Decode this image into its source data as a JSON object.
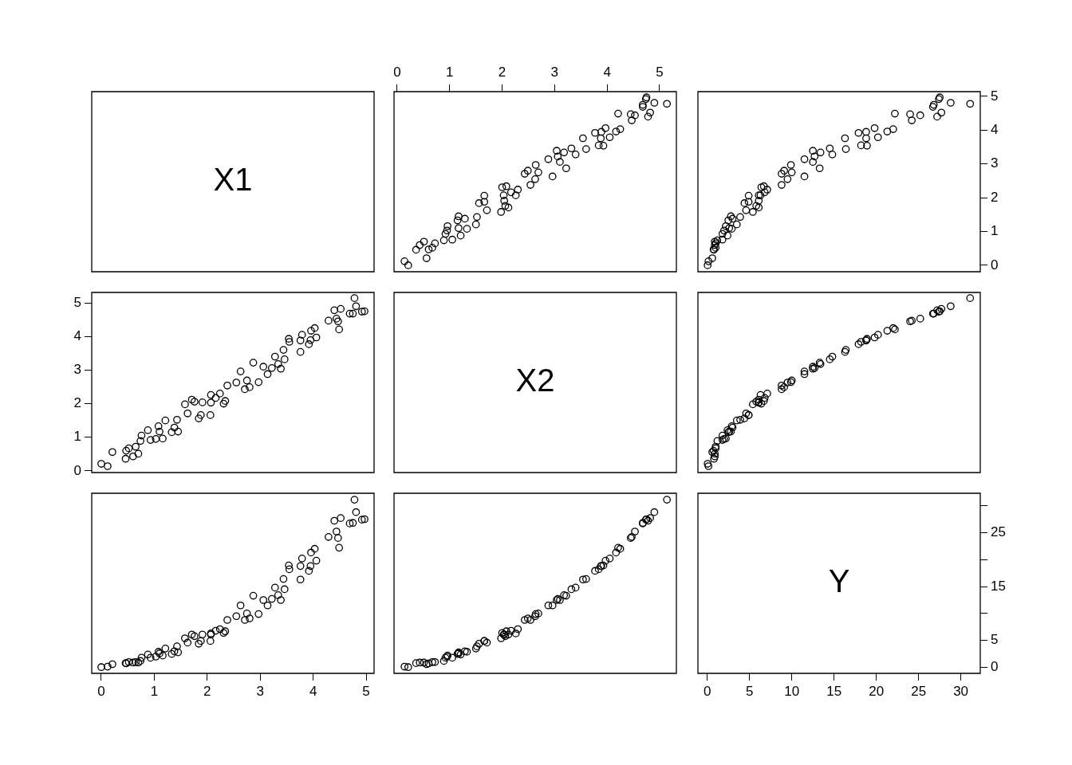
{
  "chart_data": [
    {
      "type": "other",
      "title": "X1"
    },
    {
      "type": "scatter",
      "marker": "circle",
      "color": "#000000",
      "xlim": [
        -0.06,
        5.32
      ],
      "ylim": [
        -0.19,
        5.14
      ],
      "xticks": [
        0,
        1,
        2,
        3,
        4,
        5
      ],
      "tick_labels": "x",
      "x": [
        0.21,
        0.14,
        0.56,
        0.36,
        0.6,
        0.67,
        0.43,
        0.72,
        0.51,
        0.89,
        1.05,
        1.21,
        0.92,
        0.95,
        1.33,
        1.17,
        0.96,
        1.5,
        1.15,
        1.29,
        1.52,
        1.17,
        1.98,
        1.71,
        2.12,
        2.06,
        1.56,
        1.66,
        2.04,
        1.66,
        2.26,
        2.03,
        2.17,
        2.3,
        2.0,
        2.08,
        2.54,
        2.63,
        2.96,
        2.43,
        2.69,
        2.49,
        3.22,
        2.64,
        3.1,
        2.88,
        3.06,
        3.4,
        3.18,
        3.04,
        3.6,
        3.32,
        3.93,
        3.84,
        3.54,
        3.88,
        4.05,
        3.77,
        3.89,
        4.17,
        4.25,
        3.97,
        4.47,
        4.78,
        4.53,
        4.45,
        4.21,
        4.82,
        4.68,
        4.68,
        5.14,
        4.9,
        4.74,
        4.75
      ],
      "values": [
        0.0,
        0.12,
        0.21,
        0.46,
        0.47,
        0.52,
        0.6,
        0.65,
        0.7,
        0.74,
        0.76,
        0.88,
        0.93,
        1.03,
        1.08,
        1.1,
        1.16,
        1.21,
        1.33,
        1.38,
        1.43,
        1.45,
        1.58,
        1.63,
        1.71,
        1.76,
        1.84,
        1.88,
        1.91,
        2.06,
        2.07,
        2.07,
        2.16,
        2.24,
        2.31,
        2.34,
        2.38,
        2.55,
        2.63,
        2.71,
        2.75,
        2.8,
        2.87,
        2.97,
        3.06,
        3.14,
        3.22,
        3.28,
        3.34,
        3.39,
        3.44,
        3.46,
        3.54,
        3.55,
        3.76,
        3.76,
        3.79,
        3.92,
        3.95,
        3.96,
        4.03,
        4.06,
        4.29,
        4.4,
        4.44,
        4.47,
        4.49,
        4.52,
        4.69,
        4.75,
        4.78,
        4.81,
        4.92,
        4.97
      ]
    },
    {
      "type": "scatter",
      "marker": "circle",
      "color": "#000000",
      "xlim": [
        -1.1,
        32.3
      ],
      "ylim": [
        -0.19,
        5.14
      ],
      "yticks": [
        0,
        1,
        2,
        3,
        4,
        5
      ],
      "tick_labels": "y",
      "x": [
        0.05,
        0.15,
        0.6,
        0.8,
        0.75,
        1.0,
        0.9,
        1.0,
        0.9,
        1.2,
        1.8,
        2.4,
        1.8,
        2.0,
        2.9,
        2.6,
        2.2,
        3.5,
        2.5,
        3.0,
        3.9,
        2.8,
        5.4,
        4.6,
        6.1,
        5.8,
        4.4,
        4.9,
        6.1,
        4.9,
        6.3,
        6.1,
        6.8,
        7.1,
        6.4,
        6.7,
        8.8,
        9.5,
        11.5,
        8.8,
        10.0,
        9.1,
        13.3,
        9.9,
        12.5,
        11.5,
        12.7,
        14.8,
        13.4,
        12.5,
        16.4,
        14.5,
        18.9,
        18.2,
        16.3,
        18.8,
        20.2,
        17.9,
        18.8,
        21.3,
        22.0,
        19.8,
        24.2,
        27.2,
        25.2,
        24.0,
        22.2,
        27.7,
        26.7,
        26.8,
        31.1,
        28.8,
        27.4,
        27.5
      ],
      "values": [
        0.0,
        0.12,
        0.21,
        0.46,
        0.47,
        0.52,
        0.6,
        0.65,
        0.7,
        0.74,
        0.76,
        0.88,
        0.93,
        1.03,
        1.08,
        1.1,
        1.16,
        1.21,
        1.33,
        1.38,
        1.43,
        1.45,
        1.58,
        1.63,
        1.71,
        1.76,
        1.84,
        1.88,
        1.91,
        2.06,
        2.07,
        2.07,
        2.16,
        2.24,
        2.31,
        2.34,
        2.38,
        2.55,
        2.63,
        2.71,
        2.75,
        2.8,
        2.87,
        2.97,
        3.06,
        3.14,
        3.22,
        3.28,
        3.34,
        3.39,
        3.44,
        3.46,
        3.54,
        3.55,
        3.76,
        3.76,
        3.79,
        3.92,
        3.95,
        3.96,
        4.03,
        4.06,
        4.29,
        4.4,
        4.44,
        4.47,
        4.49,
        4.52,
        4.69,
        4.75,
        4.78,
        4.81,
        4.92,
        4.97
      ]
    },
    {
      "type": "scatter",
      "marker": "circle",
      "color": "#000000",
      "xlim": [
        -0.18,
        5.15
      ],
      "ylim": [
        -0.05,
        5.31
      ],
      "yticks": [
        0,
        1,
        2,
        3,
        4,
        5
      ],
      "tick_labels": "y",
      "x": [
        0.0,
        0.12,
        0.21,
        0.46,
        0.47,
        0.52,
        0.6,
        0.65,
        0.7,
        0.74,
        0.76,
        0.88,
        0.93,
        1.03,
        1.08,
        1.1,
        1.16,
        1.21,
        1.33,
        1.38,
        1.43,
        1.45,
        1.58,
        1.63,
        1.71,
        1.76,
        1.84,
        1.88,
        1.91,
        2.06,
        2.07,
        2.07,
        2.16,
        2.24,
        2.31,
        2.34,
        2.38,
        2.55,
        2.63,
        2.71,
        2.75,
        2.8,
        2.87,
        2.97,
        3.06,
        3.14,
        3.22,
        3.28,
        3.34,
        3.39,
        3.44,
        3.46,
        3.54,
        3.55,
        3.76,
        3.76,
        3.79,
        3.92,
        3.95,
        3.96,
        4.03,
        4.06,
        4.29,
        4.4,
        4.44,
        4.47,
        4.49,
        4.52,
        4.69,
        4.75,
        4.78,
        4.81,
        4.92,
        4.97
      ],
      "values": [
        0.21,
        0.14,
        0.56,
        0.36,
        0.6,
        0.67,
        0.43,
        0.72,
        0.51,
        0.89,
        1.05,
        1.21,
        0.92,
        0.95,
        1.33,
        1.17,
        0.96,
        1.5,
        1.15,
        1.29,
        1.52,
        1.17,
        1.98,
        1.71,
        2.12,
        2.06,
        1.56,
        1.66,
        2.04,
        1.66,
        2.26,
        2.03,
        2.17,
        2.3,
        2.0,
        2.08,
        2.54,
        2.63,
        2.96,
        2.43,
        2.69,
        2.49,
        3.22,
        2.64,
        3.1,
        2.88,
        3.06,
        3.4,
        3.18,
        3.04,
        3.6,
        3.32,
        3.93,
        3.84,
        3.54,
        3.88,
        4.05,
        3.77,
        3.89,
        4.17,
        4.25,
        3.97,
        4.47,
        4.78,
        4.53,
        4.45,
        4.21,
        4.82,
        4.68,
        4.68,
        5.14,
        4.9,
        4.74,
        4.75
      ]
    },
    {
      "type": "other",
      "title": "X2"
    },
    {
      "type": "scatter",
      "marker": "circle",
      "color": "#000000",
      "xlim": [
        -1.1,
        32.3
      ],
      "ylim": [
        -0.05,
        5.31
      ],
      "tick_labels": false,
      "x": [
        0.05,
        0.15,
        0.6,
        0.8,
        0.75,
        1.0,
        0.9,
        1.0,
        0.9,
        1.2,
        1.8,
        2.4,
        1.8,
        2.0,
        2.9,
        2.6,
        2.2,
        3.5,
        2.5,
        3.0,
        3.9,
        2.8,
        5.4,
        4.6,
        6.1,
        5.8,
        4.4,
        4.9,
        6.1,
        4.9,
        6.3,
        6.1,
        6.8,
        7.1,
        6.4,
        6.7,
        8.8,
        9.5,
        11.5,
        8.8,
        10.0,
        9.1,
        13.3,
        9.9,
        12.5,
        11.5,
        12.7,
        14.8,
        13.4,
        12.5,
        16.4,
        14.5,
        18.9,
        18.2,
        16.3,
        18.8,
        20.2,
        17.9,
        18.8,
        21.3,
        22.0,
        19.8,
        24.2,
        27.2,
        25.2,
        24.0,
        22.2,
        27.7,
        26.7,
        26.8,
        31.1,
        28.8,
        27.4,
        27.5
      ],
      "values": [
        0.21,
        0.14,
        0.56,
        0.36,
        0.6,
        0.67,
        0.43,
        0.72,
        0.51,
        0.89,
        1.05,
        1.21,
        0.92,
        0.95,
        1.33,
        1.17,
        0.96,
        1.5,
        1.15,
        1.29,
        1.52,
        1.17,
        1.98,
        1.71,
        2.12,
        2.06,
        1.56,
        1.66,
        2.04,
        1.66,
        2.26,
        2.03,
        2.17,
        2.3,
        2.0,
        2.08,
        2.54,
        2.63,
        2.96,
        2.43,
        2.69,
        2.49,
        3.22,
        2.64,
        3.1,
        2.88,
        3.06,
        3.4,
        3.18,
        3.04,
        3.6,
        3.32,
        3.93,
        3.84,
        3.54,
        3.88,
        4.05,
        3.77,
        3.89,
        4.17,
        4.25,
        3.97,
        4.47,
        4.78,
        4.53,
        4.45,
        4.21,
        4.82,
        4.68,
        4.68,
        5.14,
        4.9,
        4.74,
        4.75
      ]
    },
    {
      "type": "scatter",
      "marker": "circle",
      "color": "#000000",
      "xlim": [
        -0.18,
        5.15
      ],
      "ylim": [
        -1.1,
        32.3
      ],
      "xticks": [
        0,
        1,
        2,
        3,
        4,
        5
      ],
      "tick_labels": "x",
      "x": [
        0.0,
        0.12,
        0.21,
        0.46,
        0.47,
        0.52,
        0.6,
        0.65,
        0.7,
        0.74,
        0.76,
        0.88,
        0.93,
        1.03,
        1.08,
        1.1,
        1.16,
        1.21,
        1.33,
        1.38,
        1.43,
        1.45,
        1.58,
        1.63,
        1.71,
        1.76,
        1.84,
        1.88,
        1.91,
        2.06,
        2.07,
        2.07,
        2.16,
        2.24,
        2.31,
        2.34,
        2.38,
        2.55,
        2.63,
        2.71,
        2.75,
        2.8,
        2.87,
        2.97,
        3.06,
        3.14,
        3.22,
        3.28,
        3.34,
        3.39,
        3.44,
        3.46,
        3.54,
        3.55,
        3.76,
        3.76,
        3.79,
        3.92,
        3.95,
        3.96,
        4.03,
        4.06,
        4.29,
        4.4,
        4.44,
        4.47,
        4.49,
        4.52,
        4.69,
        4.75,
        4.78,
        4.81,
        4.92,
        4.97
      ],
      "values": [
        0.05,
        0.15,
        0.6,
        0.8,
        0.75,
        1.0,
        0.9,
        1.0,
        0.9,
        1.2,
        1.8,
        2.4,
        1.8,
        2.0,
        2.9,
        2.6,
        2.2,
        3.5,
        2.5,
        3.0,
        3.9,
        2.8,
        5.4,
        4.6,
        6.1,
        5.8,
        4.4,
        4.9,
        6.1,
        4.9,
        6.3,
        6.1,
        6.8,
        7.1,
        6.4,
        6.7,
        8.8,
        9.5,
        11.5,
        8.8,
        10.0,
        9.1,
        13.3,
        9.9,
        12.5,
        11.5,
        12.7,
        14.8,
        13.4,
        12.5,
        16.4,
        14.5,
        18.9,
        18.2,
        16.3,
        18.8,
        20.2,
        17.9,
        18.8,
        21.3,
        22.0,
        19.8,
        24.2,
        27.2,
        25.2,
        24.0,
        22.2,
        27.7,
        26.7,
        26.8,
        31.1,
        28.8,
        27.4,
        27.5
      ]
    },
    {
      "type": "scatter",
      "marker": "circle",
      "color": "#000000",
      "xlim": [
        -0.06,
        5.32
      ],
      "ylim": [
        -1.1,
        32.3
      ],
      "tick_labels": false,
      "x": [
        0.21,
        0.14,
        0.56,
        0.36,
        0.6,
        0.67,
        0.43,
        0.72,
        0.51,
        0.89,
        1.05,
        1.21,
        0.92,
        0.95,
        1.33,
        1.17,
        0.96,
        1.5,
        1.15,
        1.29,
        1.52,
        1.17,
        1.98,
        1.71,
        2.12,
        2.06,
        1.56,
        1.66,
        2.04,
        1.66,
        2.26,
        2.03,
        2.17,
        2.3,
        2.0,
        2.08,
        2.54,
        2.63,
        2.96,
        2.43,
        2.69,
        2.49,
        3.22,
        2.64,
        3.1,
        2.88,
        3.06,
        3.4,
        3.18,
        3.04,
        3.6,
        3.32,
        3.93,
        3.84,
        3.54,
        3.88,
        4.05,
        3.77,
        3.89,
        4.17,
        4.25,
        3.97,
        4.47,
        4.78,
        4.53,
        4.45,
        4.21,
        4.82,
        4.68,
        4.68,
        5.14,
        4.9,
        4.74,
        4.75
      ],
      "values": [
        0.05,
        0.15,
        0.6,
        0.8,
        0.75,
        1.0,
        0.9,
        1.0,
        0.9,
        1.2,
        1.8,
        2.4,
        1.8,
        2.0,
        2.9,
        2.6,
        2.2,
        3.5,
        2.5,
        3.0,
        3.9,
        2.8,
        5.4,
        4.6,
        6.1,
        5.8,
        4.4,
        4.9,
        6.1,
        4.9,
        6.3,
        6.1,
        6.8,
        7.1,
        6.4,
        6.7,
        8.8,
        9.5,
        11.5,
        8.8,
        10.0,
        9.1,
        13.3,
        9.9,
        12.5,
        11.5,
        12.7,
        14.8,
        13.4,
        12.5,
        16.4,
        14.5,
        18.9,
        18.2,
        16.3,
        18.8,
        20.2,
        17.9,
        18.8,
        21.3,
        22.0,
        19.8,
        24.2,
        27.2,
        25.2,
        24.0,
        22.2,
        27.7,
        26.7,
        26.8,
        31.1,
        28.8,
        27.4,
        27.5
      ]
    },
    {
      "type": "scatter",
      "title": "Y",
      "xlim": [
        -1.1,
        32.3
      ],
      "ylim": [
        -1.1,
        32.3
      ],
      "xticks": [
        0,
        5,
        10,
        15,
        20,
        25,
        30
      ],
      "yticks": [
        0,
        5,
        {
          "value": 10,
          "label": null
        },
        15,
        {
          "value": 20,
          "label": null
        },
        25,
        {
          "value": 30,
          "label": null
        }
      ]
    }
  ]
}
